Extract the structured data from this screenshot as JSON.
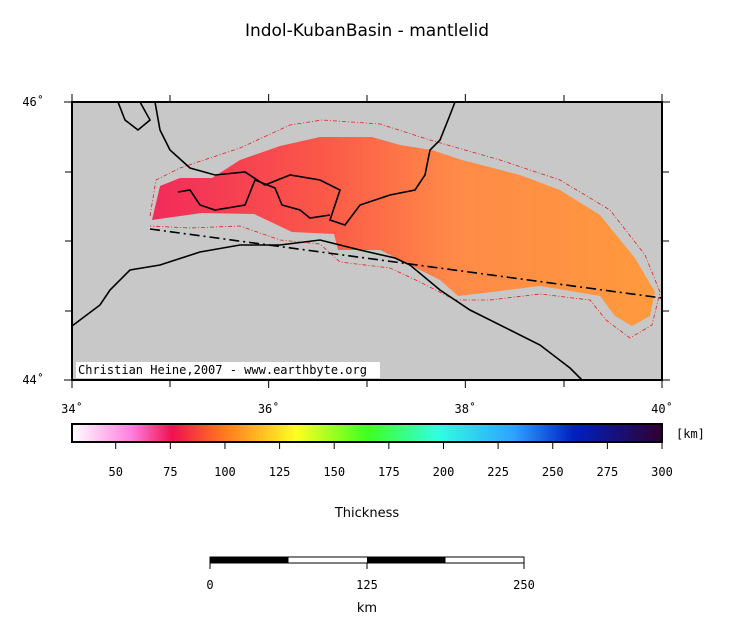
{
  "title": "Indol-KubanBasin - mantlelid",
  "credit": "Christian Heine,2007 - www.earthbyte.org",
  "map": {
    "xlim": [
      34,
      40
    ],
    "ylim": [
      44,
      46
    ],
    "xticks": [
      {
        "value": 34,
        "label": "34˚"
      },
      {
        "value": 36,
        "label": "36˚"
      },
      {
        "value": 38,
        "label": "38˚"
      },
      {
        "value": 40,
        "label": "40˚"
      }
    ],
    "yticks": [
      {
        "value": 44,
        "label": "44˚"
      },
      {
        "value": 46,
        "label": "46˚"
      }
    ]
  },
  "colorbar": {
    "lim": [
      30,
      300
    ],
    "ticks": [
      50,
      75,
      100,
      125,
      150,
      175,
      200,
      225,
      250,
      275,
      300
    ],
    "unit": "[km]",
    "label": "Thickness"
  },
  "scalebar": {
    "lim": [
      0,
      250
    ],
    "ticks": [
      0,
      125,
      250
    ],
    "unit": "km"
  }
}
